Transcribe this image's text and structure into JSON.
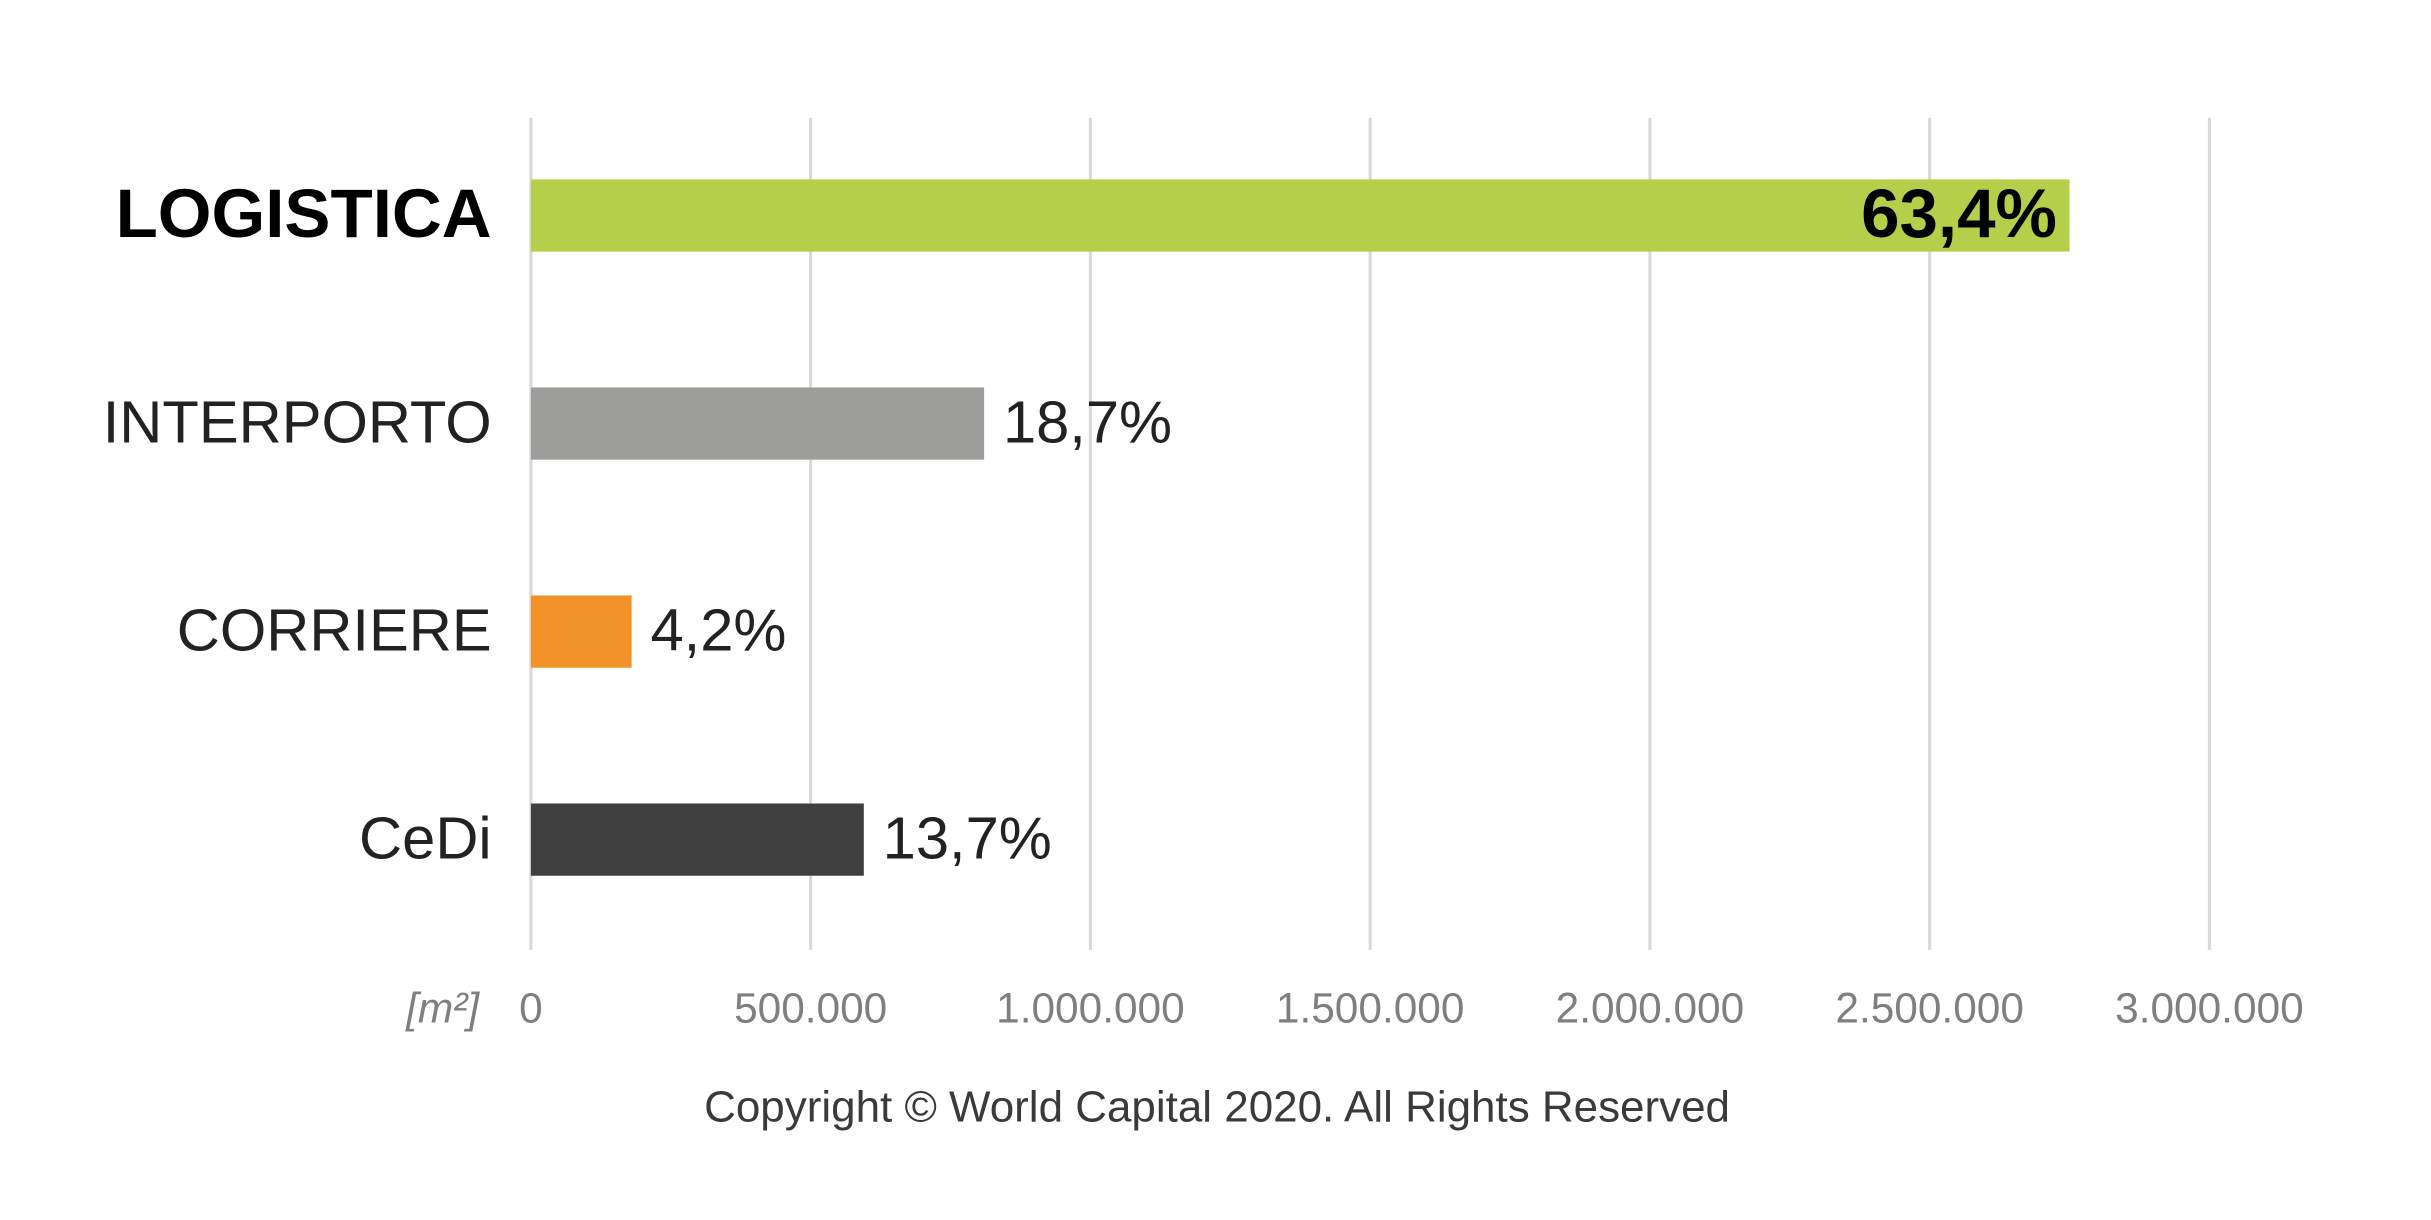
{
  "chart_data": {
    "type": "hbar",
    "categories": [
      "LOGISTICA",
      "INTERPORTO",
      "CORRIERE",
      "CeDi"
    ],
    "values": [
      2750000,
      810000,
      180000,
      595000
    ],
    "share_labels": [
      "63,4%",
      "18,7%",
      "4,2%",
      "13,7%"
    ],
    "colors": [
      "#b5cf4b",
      "#9d9d9c",
      "#f39129",
      "#3f3f3f"
    ],
    "xlim": [
      0,
      3000000
    ],
    "xticks": [
      0,
      {
        "value": 500000,
        "label": "500.000"
      },
      {
        "value": 1000000,
        "label": "1.000.000"
      },
      {
        "value": 1500000,
        "label": "1.500.000"
      },
      {
        "value": 2000000,
        "label": "2.000.000"
      },
      {
        "value": 2500000,
        "label": "2.500.000"
      },
      {
        "value": 3000000,
        "label": "3.000.000"
      }
    ],
    "x_label": "[m²]",
    "grid": true,
    "footer": "Copyright © World Capital 2020. All Rights Reserved"
  }
}
